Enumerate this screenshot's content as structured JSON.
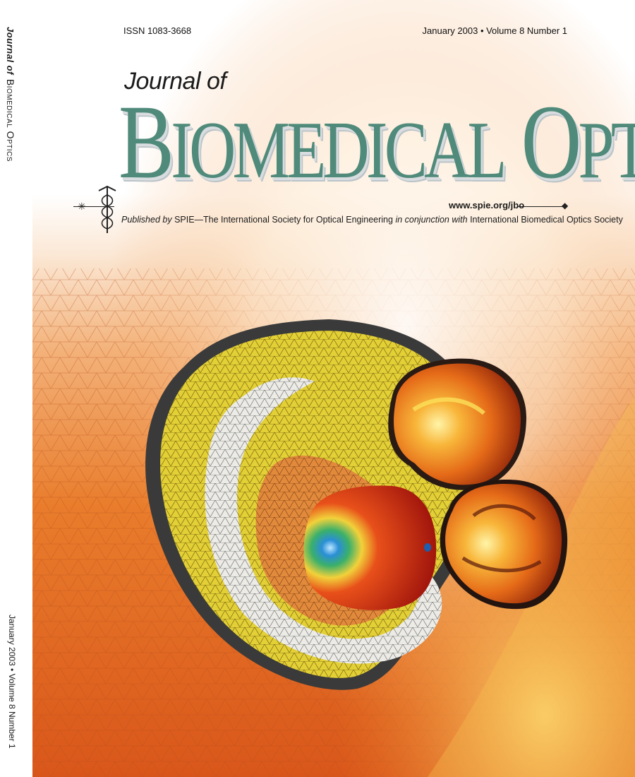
{
  "masthead": {
    "issn": "ISSN 1083-3668",
    "issue": "January 2003 • Volume 8 Number 1",
    "journal_of": "Journal of",
    "title_b": "B",
    "title_iomedical": "IOMEDICAL",
    "title_o": "O",
    "title_ptics": "PTICS",
    "url": "www.spie.org/jbo",
    "published_by": "Published by",
    "publisher": "SPIE—The International Society for Optical Engineering",
    "in_conjunction": "in conjunction with",
    "partner": "International Biomedical Optics Society"
  },
  "spine": {
    "journal_of": "Journal of",
    "title": "Biomedical Optics",
    "issue": "January 2003 • Volume 8 Number 1"
  },
  "colors": {
    "title_green": "#4f8a7a",
    "background_orange": "#e8762a",
    "mesh_yellow": "#e6d23a",
    "mesh_orange": "#e58a3a",
    "outline_dark": "#3a3a3a"
  },
  "icons": [
    "caduceus-icon",
    "star-left-icon",
    "star-right-icon"
  ]
}
